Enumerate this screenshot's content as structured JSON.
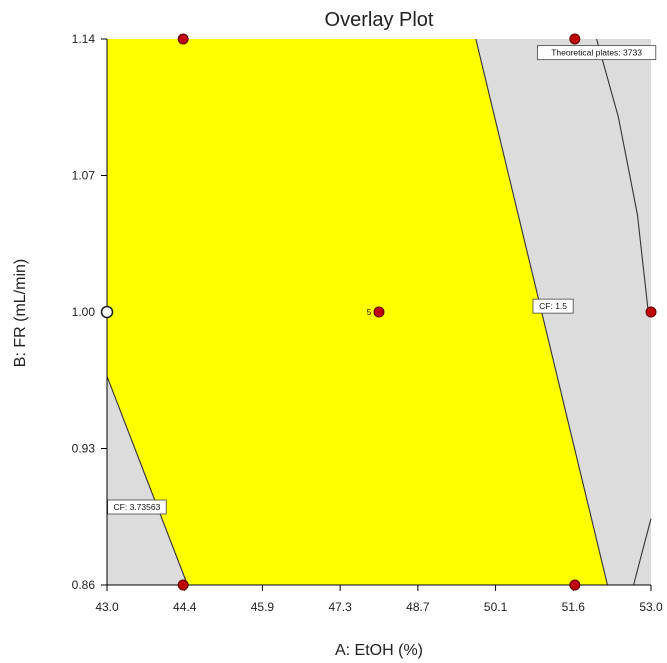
{
  "chart_data": {
    "type": "overlay-contour",
    "title": "Overlay Plot",
    "xlabel": "A: EtOH (%)",
    "ylabel": "B: FR (mL/min)",
    "xlim": [
      43.0,
      53.0
    ],
    "ylim": [
      0.86,
      1.14
    ],
    "xticks": [
      "43.0",
      "44.4",
      "45.9",
      "47.3",
      "48.7",
      "50.1",
      "51.6",
      "53.0"
    ],
    "yticks": [
      "0.86",
      "0.93",
      "1.00",
      "1.07",
      "1.14"
    ],
    "yticks_values": [
      0.86,
      0.93,
      1.0,
      1.07,
      1.14
    ],
    "colors": {
      "feasible_region": "#ffff00",
      "infeasible_region": "#dcdcdc",
      "design_point": "#c00000",
      "point_outline": "#5a0000",
      "open_point_fill": "#ffffff",
      "contour_line": "#333333",
      "axis": "#000000"
    },
    "feasible_region": {
      "polygon": [
        {
          "x": 43.0,
          "y": 1.14
        },
        {
          "x": 49.78,
          "y": 1.14
        },
        {
          "x": 52.2,
          "y": 0.86
        },
        {
          "x": 44.48,
          "y": 0.86
        },
        {
          "x": 43.0,
          "y": 0.967
        }
      ]
    },
    "contours": [
      {
        "label": "CF: 1.5",
        "points": [
          {
            "x": 49.78,
            "y": 1.14
          },
          {
            "x": 52.2,
            "y": 0.86
          }
        ],
        "label_at": {
          "x": 51.2,
          "y": 1.003
        }
      },
      {
        "label": "CF: 3.73563",
        "points": [
          {
            "x": 43.0,
            "y": 0.967
          },
          {
            "x": 44.48,
            "y": 0.86
          }
        ],
        "label_at": {
          "x": 43.55,
          "y": 0.9
        }
      },
      {
        "label": "Theoretical plates: 3733",
        "points": [
          {
            "x": 52.0,
            "y": 1.14
          },
          {
            "x": 52.4,
            "y": 1.1
          },
          {
            "x": 52.75,
            "y": 1.05
          },
          {
            "x": 52.95,
            "y": 1.0
          }
        ],
        "label_at": {
          "x": 52.0,
          "y": 1.133
        }
      }
    ],
    "extra_lines": [
      {
        "points": [
          {
            "x": 52.68,
            "y": 0.86
          },
          {
            "x": 52.82,
            "y": 0.875
          },
          {
            "x": 53.0,
            "y": 0.894
          }
        ]
      }
    ],
    "design_points": [
      {
        "x": 44.4,
        "y": 1.14,
        "open": false
      },
      {
        "x": 51.6,
        "y": 1.14,
        "open": false
      },
      {
        "x": 48.0,
        "y": 1.0,
        "open": false,
        "label": "5"
      },
      {
        "x": 53.0,
        "y": 1.0,
        "open": false
      },
      {
        "x": 43.0,
        "y": 1.0,
        "open": true
      },
      {
        "x": 44.4,
        "y": 0.86,
        "open": false
      },
      {
        "x": 51.6,
        "y": 0.86,
        "open": false
      }
    ],
    "grid": false,
    "legend": "none"
  }
}
